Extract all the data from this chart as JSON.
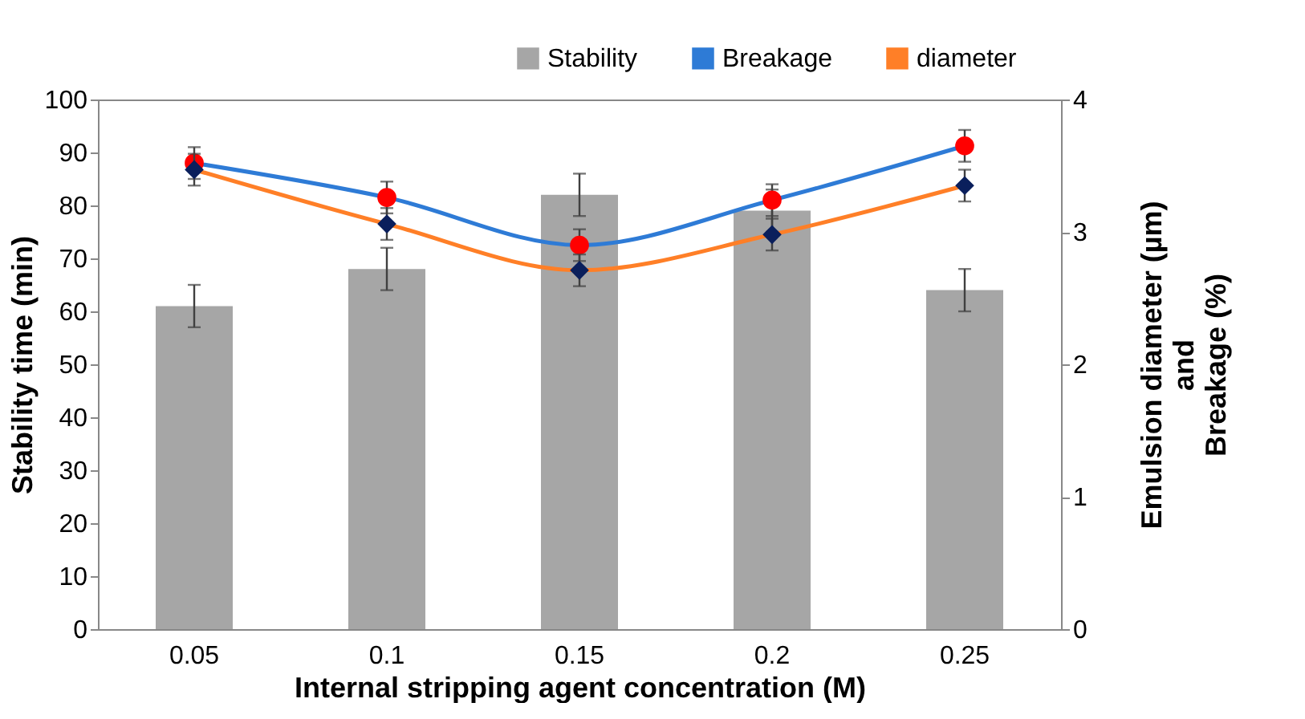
{
  "chart_data": {
    "type": "bar",
    "xlabel": "Internal stripping agent concentration (M)",
    "ylabel": "Stability time (min)",
    "y2label": "Emulsion diameter (µm)\nand\nBreakage (%)",
    "categories": [
      "0.05",
      "0.1",
      "0.15",
      "0.2",
      "0.25"
    ],
    "series": [
      {
        "name": "Stability",
        "color": "#a6a6a6",
        "values": [
          61,
          68,
          82,
          79,
          64
        ],
        "errors": [
          4,
          4,
          4,
          4,
          4
        ]
      },
      {
        "name": "Breakage",
        "type": "line",
        "axis": "y2",
        "color": "#2e7bd6",
        "colors": [
          "#ff0000",
          "#ff0000",
          "#ff0000",
          "#ff0000",
          "#ff0000"
        ],
        "marker": "circle",
        "values": [
          3.52,
          3.26,
          2.9,
          3.24,
          3.65
        ],
        "errors": [
          0.12,
          0.12,
          0.12,
          0.12,
          0.12
        ]
      },
      {
        "name": "diameter",
        "type": "line",
        "axis": "y2",
        "color": "#ff7f27",
        "colors": [
          "#0a1f5c",
          "#0a1f5c",
          "#0a1f5c",
          "#0a1f5c",
          "#0a1f5c"
        ],
        "marker": "diamond",
        "values": [
          3.47,
          3.06,
          2.71,
          2.98,
          3.35
        ],
        "errors": [
          0.12,
          0.12,
          0.12,
          0.12,
          0.12
        ]
      }
    ],
    "ylim": [
      0,
      100
    ],
    "yticks": [
      0,
      10,
      20,
      30,
      40,
      50,
      60,
      70,
      80,
      90,
      100
    ],
    "y2lim": [
      0,
      4
    ],
    "y2ticks": [
      0,
      1,
      2,
      3,
      4
    ],
    "legend": "top right",
    "grid": false
  }
}
